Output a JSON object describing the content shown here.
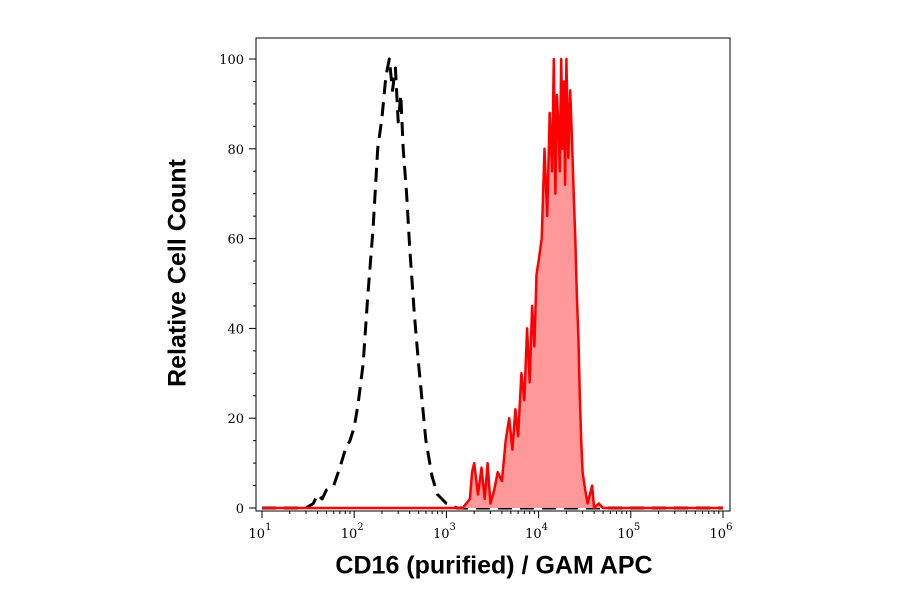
{
  "chart_data": {
    "type": "area",
    "title": "",
    "xlabel": "CD16 (purified) / GAM APC",
    "ylabel": "Relative Cell Count",
    "xscale": "log",
    "xlim": [
      10,
      1000000
    ],
    "ylim": [
      0,
      100
    ],
    "x_ticks": [
      {
        "base": "10",
        "exp": "1"
      },
      {
        "base": "10",
        "exp": "2"
      },
      {
        "base": "10",
        "exp": "3"
      },
      {
        "base": "10",
        "exp": "4"
      },
      {
        "base": "10",
        "exp": "5"
      },
      {
        "base": "10",
        "exp": "6"
      }
    ],
    "y_ticks": [
      "0",
      "20",
      "40",
      "60",
      "80",
      "100"
    ],
    "grid": false,
    "series": [
      {
        "style": "dashed",
        "color": "#000000",
        "fill": "none",
        "x": [
          10,
          22,
          30,
          36,
          40,
          45,
          50,
          60,
          70,
          80,
          90,
          100,
          110,
          125,
          140,
          160,
          180,
          200,
          220,
          240,
          260,
          280,
          300,
          320,
          340,
          370,
          400,
          450,
          500,
          600,
          700,
          800,
          1000,
          1300,
          2000,
          10000,
          1000000
        ],
        "y": [
          0,
          0,
          0,
          1,
          3,
          2,
          4,
          5,
          9,
          13,
          15,
          18,
          23,
          32,
          47,
          62,
          80,
          87,
          96,
          100,
          93,
          98,
          86,
          92,
          80,
          70,
          58,
          43,
          32,
          15,
          7,
          3,
          1,
          0,
          0,
          0,
          0
        ]
      },
      {
        "style": "solid",
        "color": "#ff0000",
        "fill": "#ff9999",
        "x": [
          10,
          1500,
          1800,
          1900,
          2000,
          2200,
          2400,
          2600,
          2800,
          3000,
          3300,
          3600,
          4000,
          4400,
          4800,
          5200,
          5600,
          6000,
          6500,
          7000,
          7500,
          8000,
          8500,
          9000,
          9500,
          10000,
          10800,
          11600,
          12400,
          13200,
          14000,
          14600,
          15200,
          15800,
          16400,
          17000,
          17600,
          18200,
          18800,
          19400,
          20000,
          21000,
          22000,
          23000,
          24000,
          25000,
          26000,
          27000,
          28000,
          29000,
          30000,
          32000,
          34000,
          36000,
          38000,
          40000,
          45000,
          50000,
          55000,
          60000,
          70000,
          100000,
          1000000
        ],
        "y": [
          0,
          0,
          2,
          8,
          10,
          3,
          9,
          2,
          10,
          1,
          4,
          8,
          6,
          15,
          20,
          13,
          22,
          16,
          30,
          24,
          40,
          28,
          45,
          36,
          52,
          55,
          60,
          80,
          65,
          88,
          75,
          100,
          70,
          92,
          85,
          75,
          100,
          80,
          95,
          72,
          100,
          78,
          93,
          82,
          70,
          60,
          47,
          38,
          25,
          15,
          8,
          4,
          1,
          3,
          5,
          0,
          1,
          0,
          0,
          0,
          0,
          0,
          0
        ]
      }
    ]
  }
}
